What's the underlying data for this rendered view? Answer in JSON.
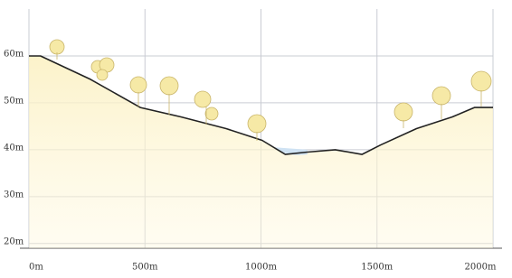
{
  "chart_data": {
    "type": "area",
    "x": [
      0,
      50,
      265,
      480,
      655,
      850,
      1005,
      1105,
      1200,
      1320,
      1435,
      1515,
      1670,
      1825,
      1920,
      2000
    ],
    "series": [
      {
        "color": "#222222",
        "fill": "#fbf1c4",
        "values": [
          60,
          60,
          55,
          49,
          47,
          44.5,
          42,
          39,
          39.5,
          40,
          39,
          41,
          44.5,
          47,
          49,
          49
        ]
      }
    ],
    "xlim": [
      0,
      2000
    ],
    "ylim": [
      19,
      70
    ],
    "xticks": [
      {
        "value": 0,
        "label": "0m"
      },
      {
        "value": 500,
        "label": "500m"
      },
      {
        "value": 1000,
        "label": "1000m"
      },
      {
        "value": 1500,
        "label": "1500m"
      },
      {
        "value": 2000,
        "label": "2000m"
      }
    ],
    "yticks": [
      {
        "value": 20,
        "label": "20m"
      },
      {
        "value": 30,
        "label": "30m"
      },
      {
        "value": 40,
        "label": "40m"
      },
      {
        "value": 50,
        "label": "50m"
      },
      {
        "value": 60,
        "label": "60m"
      }
    ],
    "grid": true
  }
}
